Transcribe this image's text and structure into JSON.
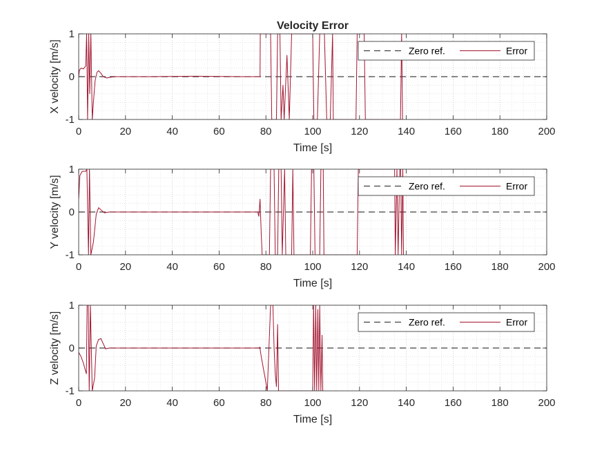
{
  "figure_title": "Velocity Error",
  "chart_data": [
    {
      "type": "line",
      "title": "Velocity Error",
      "xlabel": "Time [s]",
      "ylabel": "X velocity [m/s]",
      "xlim": [
        0,
        200
      ],
      "ylim": [
        -1,
        1
      ],
      "x_ticks": [
        "0",
        "20",
        "40",
        "60",
        "80",
        "100",
        "120",
        "140",
        "160",
        "180",
        "200"
      ],
      "y_ticks": [
        "-1",
        "0",
        "1"
      ],
      "grid": "major and minor, dotted",
      "legend": {
        "position": "top-right",
        "entries": [
          "Zero ref.",
          "Error"
        ]
      },
      "series": [
        {
          "name": "Zero ref.",
          "style": "dashed",
          "color": "#404040",
          "points": [
            [
              0,
              0
            ],
            [
              200,
              0
            ]
          ]
        },
        {
          "name": "Error",
          "style": "solid",
          "color": "#a2142f",
          "points": [
            [
              0,
              0
            ],
            [
              0.3,
              0.15
            ],
            [
              1,
              0.2
            ],
            [
              2,
              0.18
            ],
            [
              3,
              0.25
            ],
            [
              3.4,
              1.0
            ],
            [
              3.8,
              -1.0
            ],
            [
              4.3,
              1.0
            ],
            [
              4.7,
              -0.4
            ],
            [
              5.2,
              1.0
            ],
            [
              5.8,
              -1.0
            ],
            [
              6.3,
              -0.6
            ],
            [
              7,
              -0.1
            ],
            [
              7.8,
              0.1
            ],
            [
              8.5,
              0.14
            ],
            [
              9.5,
              0.08
            ],
            [
              10.5,
              0.0
            ],
            [
              12,
              -0.03
            ],
            [
              14,
              -0.01
            ],
            [
              16,
              0.0
            ],
            [
              30,
              0.0
            ],
            [
              50,
              0.01
            ],
            [
              70,
              0.0
            ],
            [
              77.5,
              0.0
            ],
            [
              77.6,
              1.0
            ],
            [
              78.5,
              1.0
            ],
            [
              82,
              1.0
            ],
            [
              82.5,
              -1.0
            ],
            [
              84.5,
              -1.0
            ],
            [
              85,
              1.0
            ],
            [
              86,
              1.0
            ],
            [
              86.5,
              -1.0
            ],
            [
              87.3,
              -0.2
            ],
            [
              87.8,
              -1.0
            ],
            [
              89,
              0.5
            ],
            [
              90,
              -1.0
            ],
            [
              91,
              1.0
            ],
            [
              100,
              1.0
            ],
            [
              100.5,
              -1.0
            ],
            [
              102,
              -1.0
            ],
            [
              103,
              1.0
            ],
            [
              105,
              1.0
            ],
            [
              106,
              -1.0
            ],
            [
              107.5,
              -1.0
            ],
            [
              108.5,
              1.0
            ],
            [
              108.8,
              -1.0
            ],
            [
              118.5,
              -1.0
            ],
            [
              119,
              1.0
            ],
            [
              122,
              1.0
            ],
            [
              122.5,
              -1.0
            ],
            [
              137.5,
              -1.0
            ],
            [
              138,
              1.0
            ],
            [
              138.4,
              -1.0
            ]
          ]
        }
      ]
    },
    {
      "type": "line",
      "xlabel": "Time [s]",
      "ylabel": "Y velocity [m/s]",
      "xlim": [
        0,
        200
      ],
      "ylim": [
        -1,
        1
      ],
      "x_ticks": [
        "0",
        "20",
        "40",
        "60",
        "80",
        "100",
        "120",
        "140",
        "160",
        "180",
        "200"
      ],
      "y_ticks": [
        "-1",
        "0",
        "1"
      ],
      "grid": "major and minor, dotted",
      "legend": {
        "position": "top-right",
        "entries": [
          "Zero ref.",
          "Error"
        ]
      },
      "series": [
        {
          "name": "Zero ref.",
          "style": "dashed",
          "color": "#404040",
          "points": [
            [
              0,
              0
            ],
            [
              200,
              0
            ]
          ]
        },
        {
          "name": "Error",
          "style": "solid",
          "color": "#a2142f",
          "points": [
            [
              0,
              0.3
            ],
            [
              0.5,
              0.85
            ],
            [
              1.5,
              0.95
            ],
            [
              3,
              0.95
            ],
            [
              3.5,
              1.0
            ],
            [
              4.2,
              -1.0
            ],
            [
              4.6,
              1.0
            ],
            [
              5.2,
              -1.0
            ],
            [
              6.3,
              -0.7
            ],
            [
              7.5,
              -0.05
            ],
            [
              8.5,
              0.1
            ],
            [
              9.5,
              0.05
            ],
            [
              11,
              -0.02
            ],
            [
              13,
              0.0
            ],
            [
              40,
              0.0
            ],
            [
              60,
              0.0
            ],
            [
              76.5,
              0.0
            ],
            [
              77,
              -0.1
            ],
            [
              77.5,
              0.3
            ],
            [
              78,
              -0.5
            ],
            [
              78.4,
              -1.0
            ],
            [
              81.5,
              -1.0
            ],
            [
              82,
              1.0
            ],
            [
              83.5,
              1.0
            ],
            [
              84,
              -1.0
            ],
            [
              85,
              -1.0
            ],
            [
              85.5,
              1.0
            ],
            [
              86.5,
              1.0
            ],
            [
              87,
              -1.0
            ],
            [
              88,
              1.0
            ],
            [
              88.5,
              -1.0
            ],
            [
              91,
              -1.0
            ],
            [
              91.5,
              1.0
            ],
            [
              92,
              -1.0
            ],
            [
              99,
              -1.0
            ],
            [
              99.5,
              1.0
            ],
            [
              100.5,
              1.0
            ],
            [
              101,
              -1.0
            ],
            [
              103,
              -1.0
            ],
            [
              103.5,
              1.0
            ],
            [
              104.5,
              1.0
            ],
            [
              104.8,
              -1.0
            ],
            [
              119,
              -1.0
            ],
            [
              119.5,
              1.0
            ],
            [
              135,
              1.0
            ],
            [
              135.3,
              -1.0
            ],
            [
              136,
              1.0
            ],
            [
              136.5,
              -1.0
            ],
            [
              137.2,
              1.0
            ],
            [
              137.6,
              1.0
            ],
            [
              138,
              -1.0
            ],
            [
              138.5,
              1.0
            ],
            [
              138.8,
              -1.0
            ]
          ]
        }
      ]
    },
    {
      "type": "line",
      "xlabel": "Time [s]",
      "ylabel": "Z velocity [m/s]",
      "xlim": [
        0,
        200
      ],
      "ylim": [
        -1,
        1
      ],
      "x_ticks": [
        "0",
        "20",
        "40",
        "60",
        "80",
        "100",
        "120",
        "140",
        "160",
        "180",
        "200"
      ],
      "y_ticks": [
        "-1",
        "0",
        "1"
      ],
      "grid": "major and minor, dotted",
      "legend": {
        "position": "top-right",
        "entries": [
          "Zero ref.",
          "Error"
        ]
      },
      "series": [
        {
          "name": "Zero ref.",
          "style": "dashed",
          "color": "#404040",
          "points": [
            [
              0,
              0
            ],
            [
              200,
              0
            ]
          ]
        },
        {
          "name": "Error",
          "style": "solid",
          "color": "#a2142f",
          "points": [
            [
              0,
              -0.1
            ],
            [
              1,
              -0.2
            ],
            [
              2,
              -0.35
            ],
            [
              3,
              -0.55
            ],
            [
              3.3,
              -0.6
            ],
            [
              3.6,
              1.0
            ],
            [
              4.1,
              1.0
            ],
            [
              4.5,
              -1.0
            ],
            [
              5,
              1.0
            ],
            [
              5.8,
              -1.0
            ],
            [
              6.8,
              -0.7
            ],
            [
              7.5,
              0.05
            ],
            [
              8.5,
              0.2
            ],
            [
              9.5,
              0.22
            ],
            [
              10.5,
              0.1
            ],
            [
              11.5,
              -0.02
            ],
            [
              13,
              0.0
            ],
            [
              40,
              0.0
            ],
            [
              60,
              0.0
            ],
            [
              77,
              0.0
            ],
            [
              77.4,
              0.02
            ],
            [
              78,
              -0.2
            ],
            [
              79,
              -0.5
            ],
            [
              80,
              -0.8
            ],
            [
              80.6,
              -1.0
            ],
            [
              82,
              1.0
            ],
            [
              83,
              1.0
            ],
            [
              83.5,
              0.0
            ],
            [
              84,
              -0.6
            ],
            [
              84.5,
              -0.9
            ],
            [
              85,
              0.55
            ],
            [
              85.4,
              -1.0
            ],
            [
              100,
              -1.0
            ],
            [
              100.4,
              1.0
            ],
            [
              100.8,
              -1.0
            ],
            [
              101.3,
              1.0
            ],
            [
              101.7,
              -1.0
            ],
            [
              102.2,
              0.9
            ],
            [
              102.6,
              -1.0
            ],
            [
              103,
              1.0
            ],
            [
              103.5,
              -1.0
            ],
            [
              104,
              0.3
            ],
            [
              104.3,
              -1.0
            ]
          ]
        }
      ]
    }
  ]
}
